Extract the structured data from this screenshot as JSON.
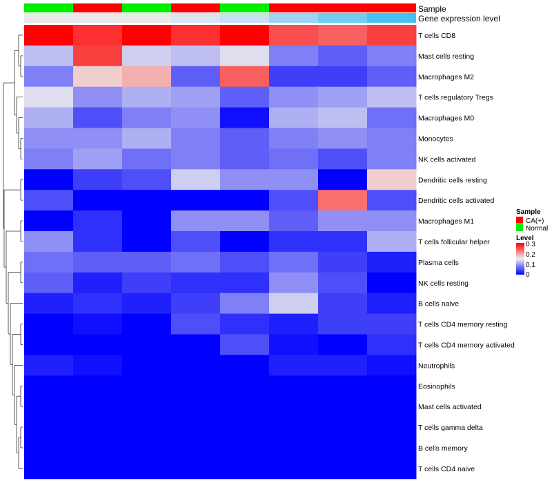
{
  "chart_data": {
    "type": "heatmap",
    "title": "",
    "annotation_rows": [
      "Sample",
      "Gene expression level"
    ],
    "sample_groups": [
      "Normal",
      "CA(+)",
      "Normal",
      "CA(+)",
      "Normal",
      "CA(+)",
      "CA(+)",
      "CA(+)"
    ],
    "gene_expression_colors": [
      "#eaeaea",
      "#eaeaea",
      "#eaeaea",
      "#d8e6f3",
      "#c8e0f2",
      "#9ed4f2",
      "#71cdf0",
      "#47c2ee"
    ],
    "rows": [
      "T cells CD8",
      "Mast cells resting",
      "Macrophages M2",
      "T cells regulatory  Tregs",
      "Macrophages M0",
      "Monocytes",
      "NK cells activated",
      "Dendritic cells resting",
      "Dendritic cells activated",
      "Macrophages M1",
      "T cells follicular helper",
      "Plasma cells",
      "NK cells resting",
      "B cells naive",
      "T cells CD4 memory resting",
      "T cells CD4 memory activated",
      "Neutrophils",
      "Eosinophils",
      "Mast cells activated",
      "T cells gamma delta",
      "B cells memory",
      "T cells CD4 naive"
    ],
    "values": [
      [
        0.3,
        0.27,
        0.3,
        0.27,
        0.3,
        0.25,
        0.24,
        0.26
      ],
      [
        0.12,
        0.26,
        0.13,
        0.12,
        0.14,
        0.08,
        0.06,
        0.08
      ],
      [
        0.08,
        0.17,
        0.19,
        0.06,
        0.24,
        0.04,
        0.04,
        0.06
      ],
      [
        0.14,
        0.09,
        0.11,
        0.1,
        0.06,
        0.09,
        0.1,
        0.12
      ],
      [
        0.11,
        0.05,
        0.08,
        0.09,
        0.01,
        0.11,
        0.12,
        0.07
      ],
      [
        0.09,
        0.09,
        0.11,
        0.08,
        0.06,
        0.08,
        0.09,
        0.08
      ],
      [
        0.08,
        0.1,
        0.07,
        0.08,
        0.06,
        0.07,
        0.05,
        0.08
      ],
      [
        0.0,
        0.04,
        0.05,
        0.13,
        0.09,
        0.09,
        0.0,
        0.17
      ],
      [
        0.05,
        0.0,
        0.0,
        0.0,
        0.0,
        0.05,
        0.23,
        0.05
      ],
      [
        0.0,
        0.03,
        0.0,
        0.09,
        0.09,
        0.06,
        0.09,
        0.09
      ],
      [
        0.09,
        0.03,
        0.0,
        0.05,
        0.0,
        0.03,
        0.03,
        0.11
      ],
      [
        0.07,
        0.06,
        0.06,
        0.07,
        0.05,
        0.07,
        0.04,
        0.02
      ],
      [
        0.06,
        0.02,
        0.04,
        0.03,
        0.03,
        0.09,
        0.05,
        0.0
      ],
      [
        0.02,
        0.03,
        0.02,
        0.04,
        0.08,
        0.13,
        0.04,
        0.02
      ],
      [
        0.0,
        0.01,
        0.0,
        0.05,
        0.03,
        0.02,
        0.04,
        0.04
      ],
      [
        0.0,
        0.0,
        0.0,
        0.0,
        0.05,
        0.01,
        0.0,
        0.03
      ],
      [
        0.02,
        0.01,
        0.0,
        0.0,
        0.0,
        0.02,
        0.02,
        0.01
      ],
      [
        0.0,
        0.0,
        0.0,
        0.0,
        0.0,
        0.0,
        0.0,
        0.0
      ],
      [
        0.0,
        0.0,
        0.0,
        0.0,
        0.0,
        0.0,
        0.0,
        0.0
      ],
      [
        0.0,
        0.0,
        0.0,
        0.0,
        0.0,
        0.0,
        0.0,
        0.0
      ],
      [
        0.0,
        0.0,
        0.0,
        0.0,
        0.0,
        0.0,
        0.0,
        0.0
      ],
      [
        0.0,
        0.0,
        0.0,
        0.0,
        0.0,
        0.0,
        0.0,
        0.0
      ]
    ],
    "color_scale": {
      "min": 0,
      "max": 0.3,
      "low": "#0000ff",
      "mid": "#eeeeee",
      "high": "#ff0000",
      "mid_value": 0.15
    },
    "legend": {
      "sample_title": "Sample",
      "sample_entries": [
        {
          "label": "CA(+)",
          "color": "#ff0000"
        },
        {
          "label": "Normal",
          "color": "#00ee00"
        }
      ],
      "level_title": "Level",
      "level_ticks": [
        "0.3",
        "0.2",
        "0.1",
        "0"
      ],
      "position": "right"
    },
    "row_dendrogram": true
  }
}
